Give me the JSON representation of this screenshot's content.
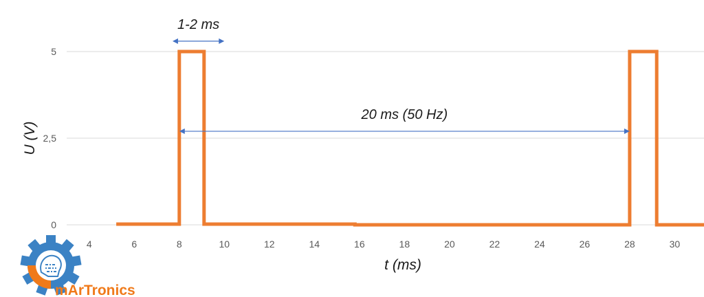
{
  "chart_data": {
    "type": "line",
    "xlabel": "t (ms)",
    "ylabel": "U (V)",
    "xlim": [
      3,
      31.3
    ],
    "ylim": [
      0,
      5
    ],
    "x_ticks": [
      4,
      6,
      8,
      10,
      12,
      14,
      16,
      18,
      20,
      22,
      24,
      26,
      28,
      30
    ],
    "y_ticks": [
      0,
      2.5,
      5
    ],
    "y_tick_labels": [
      "0",
      "2,5",
      "5"
    ],
    "grid": "horizontal",
    "series": [
      {
        "color": "#ed7d31",
        "points": [
          [
            5.2,
            0.02
          ],
          [
            8,
            0.02
          ],
          [
            8,
            5
          ],
          [
            9.1,
            5
          ],
          [
            9.1,
            0.02
          ],
          [
            15.8,
            0.02
          ],
          [
            15.8,
            0.0
          ],
          [
            28,
            0.0
          ],
          [
            28,
            5
          ],
          [
            29.2,
            5
          ],
          [
            29.2,
            0.0
          ],
          [
            31.3,
            0.0
          ]
        ]
      }
    ],
    "annotations": [
      {
        "text": "1-2 ms",
        "arrow_from": 7.7,
        "arrow_to": 10.0,
        "y": 5.3
      },
      {
        "text": "20 ms (50 Hz)",
        "arrow_from": 8,
        "arrow_to": 28,
        "y": 2.7
      }
    ]
  },
  "logo": {
    "text": "mArTronics",
    "gear_color": "#3b82c4",
    "accent_color": "#f07a1a"
  },
  "colors": {
    "signal": "#ed7d31",
    "arrow": "#4472c4",
    "grid": "#d9d9d9"
  }
}
